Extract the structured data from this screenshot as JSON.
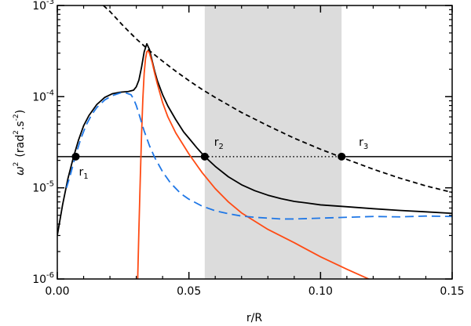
{
  "chart_data": {
    "type": "line",
    "xlabel": "r/R",
    "ylabel_main": "ω",
    "ylabel_sup": "2",
    "ylabel_unit": "(rad",
    "ylabel_unit_sup1": "2",
    "ylabel_unit_mid": ".s",
    "ylabel_unit_sup2": "-2",
    "ylabel_unit_end": ")",
    "xlim": [
      0.0,
      0.15
    ],
    "ylim": [
      1e-06,
      0.001
    ],
    "yscale": "log",
    "x_ticks": [
      {
        "value": 0.0,
        "label": "0.00"
      },
      {
        "value": 0.05,
        "label": "0.05"
      },
      {
        "value": 0.1,
        "label": "0.10"
      },
      {
        "value": 0.15,
        "label": "0.15"
      }
    ],
    "y_ticks": [
      {
        "value": 1e-06,
        "base": "10",
        "exp": "-6"
      },
      {
        "value": 1e-05,
        "base": "10",
        "exp": "-5"
      },
      {
        "value": 0.0001,
        "base": "10",
        "exp": "-4"
      },
      {
        "value": 0.001,
        "base": "10",
        "exp": "-3"
      }
    ],
    "shaded_region": {
      "x_start": 0.056,
      "x_end": 0.108,
      "color": "#dcdcdc"
    },
    "horizontal_line": {
      "y": 2.2e-05
    },
    "points": [
      {
        "label": "r",
        "sub": "1",
        "x": 0.007,
        "y": 2.2e-05
      },
      {
        "label": "r",
        "sub": "2",
        "x": 0.056,
        "y": 2.2e-05
      },
      {
        "label": "r",
        "sub": "3",
        "x": 0.108,
        "y": 2.2e-05
      }
    ],
    "series": [
      {
        "style": "solid",
        "color": "#000000",
        "x": [
          0.0,
          0.002,
          0.004,
          0.006,
          0.008,
          0.01,
          0.012,
          0.015,
          0.018,
          0.021,
          0.024,
          0.027,
          0.029,
          0.03,
          0.031,
          0.032,
          0.033,
          0.034,
          0.035,
          0.036,
          0.037,
          0.038,
          0.04,
          0.042,
          0.045,
          0.048,
          0.05,
          0.053,
          0.056,
          0.06,
          0.065,
          0.07,
          0.075,
          0.08,
          0.085,
          0.09,
          0.095,
          0.1,
          0.11,
          0.12,
          0.13,
          0.14,
          0.15
        ],
        "y": [
          3e-06,
          6.5e-06,
          1.25e-05,
          2.1e-05,
          3.3e-05,
          4.8e-05,
          6.2e-05,
          8.2e-05,
          9.8e-05,
          0.000108,
          0.000112,
          0.000114,
          0.000118,
          0.000128,
          0.000152,
          0.00021,
          0.00031,
          0.00038,
          0.00033,
          0.00025,
          0.00019,
          0.00015,
          0.000105,
          7.9e-05,
          5.6e-05,
          4.1e-05,
          3.5e-05,
          2.75e-05,
          2.2e-05,
          1.72e-05,
          1.32e-05,
          1.08e-05,
          9.3e-06,
          8.3e-06,
          7.6e-06,
          7.1e-06,
          6.8e-06,
          6.5e-06,
          6.2e-06,
          5.9e-06,
          5.65e-06,
          5.45e-06,
          5.25e-06
        ]
      },
      {
        "style": "solid",
        "color": "#ff4b14",
        "x": [
          0.0305,
          0.031,
          0.0315,
          0.032,
          0.0325,
          0.033,
          0.0335,
          0.034,
          0.0345,
          0.035,
          0.036,
          0.037,
          0.038,
          0.04,
          0.042,
          0.045,
          0.05,
          0.055,
          0.06,
          0.065,
          0.07,
          0.08,
          0.09,
          0.1,
          0.11,
          0.12,
          0.123
        ],
        "y": [
          9e-07,
          3.5e-06,
          1.2e-05,
          3.8e-05,
          9.5e-05,
          0.00018,
          0.00026,
          0.00031,
          0.00032,
          0.0003,
          0.00024,
          0.00018,
          0.000138,
          8.6e-05,
          6e-05,
          4e-05,
          2.35e-05,
          1.47e-05,
          9.8e-06,
          7e-06,
          5.3e-06,
          3.5e-06,
          2.5e-06,
          1.75e-06,
          1.28e-06,
          9.5e-07,
          8.5e-07
        ]
      },
      {
        "style": "long-dash",
        "color": "#1f77e6",
        "x": [
          0.0035,
          0.005,
          0.007,
          0.009,
          0.011,
          0.013,
          0.015,
          0.018,
          0.021,
          0.024,
          0.026,
          0.028,
          0.029,
          0.03,
          0.031,
          0.032,
          0.033,
          0.035,
          0.037,
          0.04,
          0.043,
          0.047,
          0.05,
          0.055,
          0.06,
          0.065,
          0.07,
          0.075,
          0.08,
          0.085,
          0.09,
          0.095,
          0.1,
          0.11,
          0.12,
          0.13,
          0.14,
          0.15
        ],
        "y": [
          1e-05,
          1.4e-05,
          2.3e-05,
          3.5e-05,
          4.9e-05,
          6.3e-05,
          7.6e-05,
          9.2e-05,
          0.000103,
          0.00011,
          0.00011,
          0.000105,
          9.4e-05,
          8e-05,
          6.5e-05,
          5.2e-05,
          4.2e-05,
          2.9e-05,
          2.15e-05,
          1.5e-05,
          1.13e-05,
          8.6e-06,
          7.5e-06,
          6.3e-06,
          5.6e-06,
          5.2e-06,
          4.9e-06,
          4.75e-06,
          4.65e-06,
          4.55e-06,
          4.55e-06,
          4.6e-06,
          4.65e-06,
          4.75e-06,
          4.85e-06,
          4.8e-06,
          4.9e-06,
          4.85e-06
        ]
      },
      {
        "style": "short-dash",
        "color": "#000000",
        "x": [
          0.0175,
          0.02,
          0.025,
          0.03,
          0.035,
          0.04,
          0.045,
          0.05,
          0.055,
          0.06,
          0.07,
          0.08,
          0.09,
          0.1,
          0.11,
          0.12,
          0.13,
          0.14,
          0.15
        ],
        "y": [
          0.001,
          0.00086,
          0.0006,
          0.00043,
          0.00032,
          0.000245,
          0.00019,
          0.00015,
          0.00012,
          9.8e-05,
          6.7e-05,
          4.8e-05,
          3.5e-05,
          2.65e-05,
          2.05e-05,
          1.6e-05,
          1.28e-05,
          1.05e-05,
          8.9e-06
        ]
      }
    ]
  }
}
